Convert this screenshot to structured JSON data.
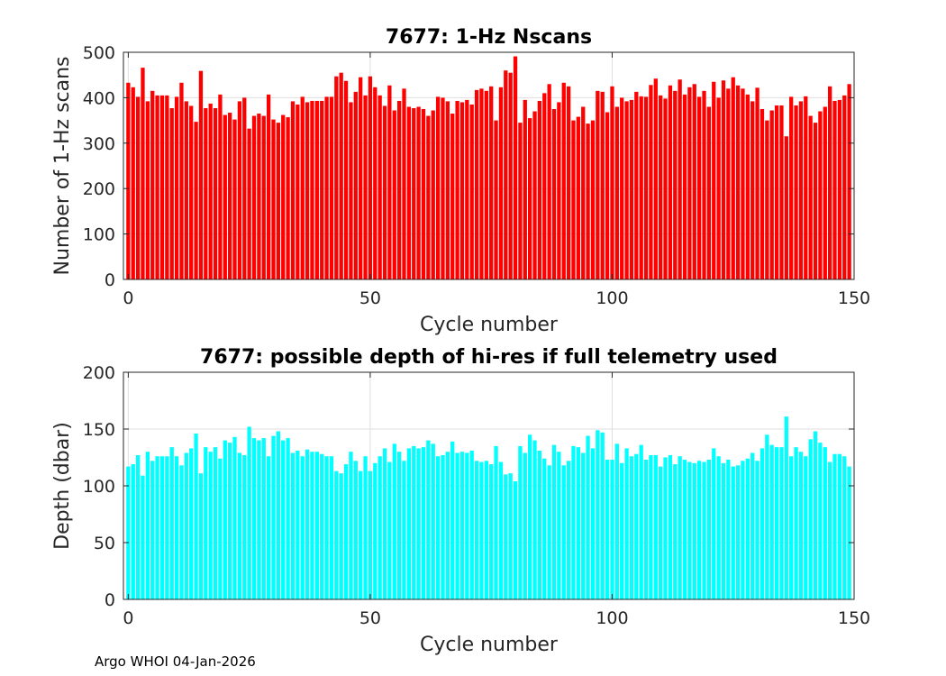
{
  "chart_data": [
    {
      "type": "bar",
      "title": "7677: 1-Hz Nscans",
      "xlabel": "Cycle number",
      "ylabel": "Number of 1-Hz scans",
      "xlim": [
        -1,
        150
      ],
      "ylim": [
        0,
        500
      ],
      "xticks": [
        0,
        50,
        100,
        150
      ],
      "yticks": [
        0,
        100,
        200,
        300,
        400,
        500
      ],
      "grid": true,
      "color": "#ff0000",
      "x_start": 0,
      "values": [
        433,
        423,
        402,
        466,
        392,
        415,
        405,
        405,
        405,
        377,
        402,
        433,
        392,
        382,
        347,
        459,
        377,
        387,
        377,
        407,
        362,
        367,
        352,
        392,
        400,
        332,
        360,
        365,
        360,
        407,
        352,
        345,
        362,
        357,
        392,
        385,
        402,
        390,
        393,
        393,
        393,
        402,
        402,
        447,
        455,
        437,
        390,
        413,
        445,
        405,
        447,
        423,
        405,
        382,
        427,
        372,
        393,
        420,
        380,
        377,
        380,
        375,
        360,
        372,
        402,
        400,
        392,
        365,
        393,
        390,
        395,
        385,
        417,
        420,
        415,
        425,
        350,
        423,
        460,
        455,
        491,
        345,
        395,
        355,
        370,
        393,
        410,
        430,
        375,
        390,
        433,
        425,
        350,
        358,
        380,
        343,
        350,
        415,
        413,
        368,
        425,
        380,
        400,
        392,
        395,
        413,
        403,
        402,
        428,
        442,
        405,
        398,
        427,
        415,
        440,
        407,
        423,
        430,
        402,
        415,
        380,
        435,
        400,
        438,
        420,
        445,
        427,
        420,
        407,
        392,
        422,
        375,
        350,
        372,
        383,
        383,
        315,
        402,
        383,
        392,
        403,
        360,
        345,
        370,
        380,
        425,
        393,
        395,
        405,
        430
      ]
    },
    {
      "type": "bar",
      "title": "7677: possible depth of hi-res if full telemetry used",
      "xlabel": "Cycle number",
      "ylabel": "Depth (dbar)",
      "xlim": [
        -1,
        150
      ],
      "ylim": [
        0,
        200
      ],
      "xticks": [
        0,
        50,
        100,
        150
      ],
      "yticks": [
        0,
        50,
        100,
        150,
        200
      ],
      "grid": true,
      "color": "#00ffff",
      "x_start": 0,
      "values": [
        117,
        119,
        127,
        109,
        130,
        122,
        126,
        126,
        126,
        134,
        126,
        118,
        129,
        133,
        146,
        111,
        134,
        130,
        134,
        124,
        140,
        138,
        143,
        129,
        127,
        152,
        142,
        140,
        142,
        126,
        144,
        148,
        140,
        142,
        129,
        131,
        126,
        132,
        130,
        130,
        128,
        126,
        126,
        113,
        111,
        119,
        130,
        122,
        113,
        126,
        113,
        120,
        126,
        133,
        121,
        137,
        130,
        122,
        133,
        135,
        133,
        134,
        140,
        137,
        126,
        127,
        130,
        139,
        129,
        130,
        129,
        131,
        122,
        121,
        122,
        119,
        135,
        121,
        110,
        111,
        104,
        135,
        129,
        145,
        140,
        131,
        124,
        118,
        136,
        130,
        118,
        122,
        135,
        134,
        129,
        144,
        133,
        149,
        147,
        123,
        123,
        137,
        120,
        133,
        126,
        128,
        136,
        123,
        127,
        127,
        117,
        125,
        127,
        119,
        126,
        123,
        121,
        120,
        122,
        121,
        123,
        133,
        126,
        120,
        123,
        117,
        118,
        122,
        124,
        129,
        122,
        133,
        145,
        136,
        134,
        134,
        161,
        126,
        134,
        130,
        126,
        141,
        148,
        138,
        134,
        121,
        128,
        128,
        126,
        117
      ]
    }
  ],
  "footer": "Argo WHOI 04-Jan-2026"
}
